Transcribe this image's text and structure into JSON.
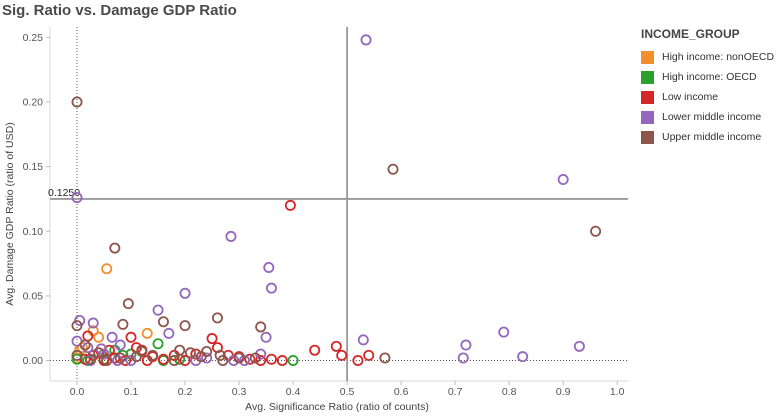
{
  "chart_data": {
    "type": "scatter",
    "title": "Sig. Ratio vs. Damage GDP Ratio",
    "xlabel": "Avg. Significance Ratio (ratio of counts)",
    "ylabel": "Avg. Damage GDP Ratio (ratio of USD)",
    "xlim": [
      -0.05,
      1.02
    ],
    "ylim": [
      -0.005,
      0.258
    ],
    "x_ticks": [
      "0.0",
      "0.1",
      "0.2",
      "0.3",
      "0.4",
      "0.5",
      "0.6",
      "0.7",
      "0.8",
      "0.9",
      "1.0"
    ],
    "y_ticks": [
      "0.00",
      "0.05",
      "0.10",
      "0.15",
      "0.20",
      "0.25"
    ],
    "grid": false,
    "reference_lines": {
      "x": 0.5,
      "y": 0.125,
      "y_label": "0.1250"
    },
    "zero_lines": "dotted at x=0 and y=0",
    "marker": "hollow circle",
    "legend": {
      "title": "INCOME_GROUP",
      "placement": "right"
    },
    "series": [
      {
        "name": "High income: nonOECD",
        "color": "#f28e2b",
        "points": [
          [
            0.055,
            0.071
          ],
          [
            0.13,
            0.021
          ],
          [
            0.03,
            0.023
          ],
          [
            0.0,
            0.002
          ],
          [
            0.005,
            0.008
          ],
          [
            0.01,
            0.01
          ],
          [
            0.04,
            0.018
          ]
        ]
      },
      {
        "name": "High income: OECD",
        "color": "#2ca02c",
        "points": [
          [
            0.4,
            0.0
          ],
          [
            0.0,
            0.001
          ],
          [
            0.15,
            0.013
          ],
          [
            0.07,
            0.008
          ],
          [
            0.16,
            0.0
          ],
          [
            0.05,
            0.001
          ],
          [
            0.02,
            0.0
          ],
          [
            0.1,
            0.005
          ],
          [
            0.19,
            0.001
          ],
          [
            0.085,
            0.004
          ]
        ]
      },
      {
        "name": "Low income",
        "color": "#d62728",
        "points": [
          [
            0.395,
            0.12
          ],
          [
            0.02,
            0.019
          ],
          [
            0.03,
            0.004
          ],
          [
            0.06,
            0.008
          ],
          [
            0.1,
            0.018
          ],
          [
            0.11,
            0.01
          ],
          [
            0.12,
            0.008
          ],
          [
            0.14,
            0.003
          ],
          [
            0.16,
            0.001
          ],
          [
            0.18,
            0.004
          ],
          [
            0.2,
            0.0
          ],
          [
            0.22,
            0.005
          ],
          [
            0.25,
            0.017
          ],
          [
            0.26,
            0.01
          ],
          [
            0.28,
            0.004
          ],
          [
            0.3,
            0.003
          ],
          [
            0.32,
            0.001
          ],
          [
            0.34,
            0.0
          ],
          [
            0.36,
            0.001
          ],
          [
            0.38,
            0.0
          ],
          [
            0.44,
            0.008
          ],
          [
            0.48,
            0.011
          ],
          [
            0.49,
            0.004
          ],
          [
            0.52,
            0.0
          ],
          [
            0.54,
            0.004
          ],
          [
            0.015,
            0.001
          ],
          [
            0.05,
            0.0
          ],
          [
            0.07,
            0.002
          ],
          [
            0.09,
            0.0
          ],
          [
            0.13,
            0.0
          ]
        ]
      },
      {
        "name": "Lower middle income",
        "color": "#9467bd",
        "points": [
          [
            0.535,
            0.248
          ],
          [
            0.0,
            0.126
          ],
          [
            0.9,
            0.14
          ],
          [
            0.285,
            0.096
          ],
          [
            0.355,
            0.072
          ],
          [
            0.36,
            0.056
          ],
          [
            0.2,
            0.052
          ],
          [
            0.15,
            0.039
          ],
          [
            0.005,
            0.031
          ],
          [
            0.03,
            0.029
          ],
          [
            0.35,
            0.018
          ],
          [
            0.53,
            0.016
          ],
          [
            0.79,
            0.022
          ],
          [
            0.72,
            0.012
          ],
          [
            0.93,
            0.011
          ],
          [
            0.825,
            0.003
          ],
          [
            0.715,
            0.002
          ],
          [
            0.0,
            0.015
          ],
          [
            0.02,
            0.01
          ],
          [
            0.05,
            0.005
          ],
          [
            0.08,
            0.012
          ],
          [
            0.1,
            0.0
          ],
          [
            0.17,
            0.021
          ],
          [
            0.22,
            0.0
          ],
          [
            0.24,
            0.002
          ],
          [
            0.29,
            0.0
          ],
          [
            0.31,
            0.0
          ],
          [
            0.34,
            0.005
          ],
          [
            0.065,
            0.018
          ],
          [
            0.025,
            0.0
          ],
          [
            0.045,
            0.009
          ],
          [
            0.075,
            0.0
          ]
        ]
      },
      {
        "name": "Upper middle income",
        "color": "#8c564b",
        "points": [
          [
            0.0,
            0.2
          ],
          [
            0.585,
            0.148
          ],
          [
            0.96,
            0.1
          ],
          [
            0.07,
            0.087
          ],
          [
            0.095,
            0.044
          ],
          [
            0.26,
            0.033
          ],
          [
            0.0,
            0.027
          ],
          [
            0.2,
            0.027
          ],
          [
            0.34,
            0.026
          ],
          [
            0.16,
            0.03
          ],
          [
            0.085,
            0.028
          ],
          [
            0.57,
            0.002
          ],
          [
            0.265,
            0.004
          ],
          [
            0.12,
            0.007
          ],
          [
            0.23,
            0.003
          ],
          [
            0.04,
            0.006
          ],
          [
            0.18,
            0.0
          ],
          [
            0.21,
            0.006
          ],
          [
            0.3,
            0.002
          ],
          [
            0.14,
            0.004
          ],
          [
            0.0,
            0.004
          ],
          [
            0.025,
            0.001
          ],
          [
            0.11,
            0.003
          ],
          [
            0.19,
            0.008
          ],
          [
            0.27,
            0.0
          ],
          [
            0.33,
            0.002
          ],
          [
            0.08,
            0.002
          ],
          [
            0.055,
            0.0
          ],
          [
            0.015,
            0.012
          ],
          [
            0.24,
            0.007
          ]
        ]
      }
    ]
  }
}
